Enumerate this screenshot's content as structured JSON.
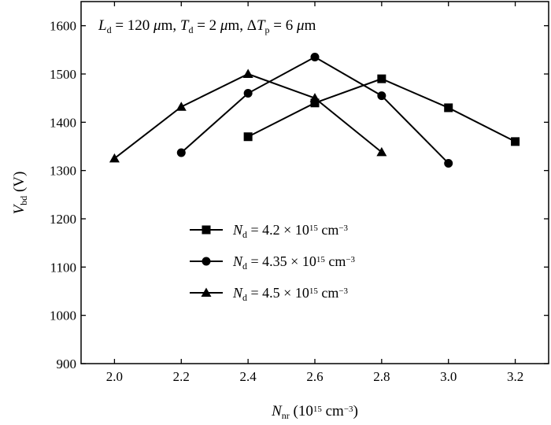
{
  "chart_data": {
    "type": "line",
    "annotation": {
      "parts": [
        {
          "text": "L",
          "style": "italic"
        },
        {
          "text": "d",
          "style": "sub"
        },
        {
          "text": " = 120 "
        },
        {
          "text": "μ",
          "style": "italic"
        },
        {
          "text": "m, "
        },
        {
          "text": "T",
          "style": "italic"
        },
        {
          "text": "d",
          "style": "sub"
        },
        {
          "text": " = 2 "
        },
        {
          "text": "μ",
          "style": "italic"
        },
        {
          "text": "m, Δ"
        },
        {
          "text": "T",
          "style": "italic"
        },
        {
          "text": "p",
          "style": "sub"
        },
        {
          "text": " = 6 "
        },
        {
          "text": "μ",
          "style": "italic"
        },
        {
          "text": "m"
        }
      ]
    },
    "xlabel": {
      "parts": [
        {
          "text": "N",
          "style": "italic"
        },
        {
          "text": "nr",
          "style": "sub"
        },
        {
          "text": "  (10"
        },
        {
          "text": "15",
          "style": "sup"
        },
        {
          "text": " cm"
        },
        {
          "text": "−3",
          "style": "sup"
        },
        {
          "text": ")"
        }
      ]
    },
    "ylabel": {
      "parts": [
        {
          "text": "V",
          "style": "italic"
        },
        {
          "text": "bd",
          "style": "sub"
        },
        {
          "text": " (V)"
        }
      ]
    },
    "xlim": [
      1.9,
      3.3
    ],
    "ylim": [
      900,
      1650
    ],
    "xticks": [
      2.0,
      2.2,
      2.4,
      2.6,
      2.8,
      3.0,
      3.2
    ],
    "xtick_labels": [
      "2.0",
      "2.2",
      "2.4",
      "2.6",
      "2.8",
      "3.0",
      "3.2"
    ],
    "yticks": [
      900,
      1000,
      1100,
      1200,
      1300,
      1400,
      1500,
      1600
    ],
    "ytick_labels": [
      "900",
      "1000",
      "1100",
      "1200",
      "1300",
      "1400",
      "1500",
      "1600"
    ],
    "grid": false,
    "legend_position": "lower-center",
    "series": [
      {
        "marker": "square",
        "color": "#000000",
        "legend_parts": [
          {
            "text": "N",
            "style": "italic"
          },
          {
            "text": "d",
            "style": "sub"
          },
          {
            "text": " = 4.2 × 10"
          },
          {
            "text": "15",
            "style": "sup"
          },
          {
            "text": " cm"
          },
          {
            "text": "−3",
            "style": "sup"
          }
        ],
        "x": [
          2.4,
          2.6,
          2.8,
          3.0,
          3.2
        ],
        "y": [
          1370,
          1440,
          1490,
          1430,
          1360
        ]
      },
      {
        "marker": "circle",
        "color": "#000000",
        "legend_parts": [
          {
            "text": "N",
            "style": "italic"
          },
          {
            "text": "d",
            "style": "sub"
          },
          {
            "text": " = 4.35 × 10"
          },
          {
            "text": "15",
            "style": "sup"
          },
          {
            "text": " cm"
          },
          {
            "text": "−3",
            "style": "sup"
          }
        ],
        "x": [
          2.2,
          2.4,
          2.6,
          2.8,
          3.0
        ],
        "y": [
          1337,
          1460,
          1535,
          1455,
          1315
        ]
      },
      {
        "marker": "triangle",
        "color": "#000000",
        "legend_parts": [
          {
            "text": "N",
            "style": "italic"
          },
          {
            "text": "d",
            "style": "sub"
          },
          {
            "text": " = 4.5 × 10"
          },
          {
            "text": "15",
            "style": "sup"
          },
          {
            "text": " cm"
          },
          {
            "text": "−3",
            "style": "sup"
          }
        ],
        "x": [
          2.0,
          2.2,
          2.4,
          2.6,
          2.8
        ],
        "y": [
          1325,
          1432,
          1500,
          1450,
          1338
        ]
      }
    ]
  }
}
